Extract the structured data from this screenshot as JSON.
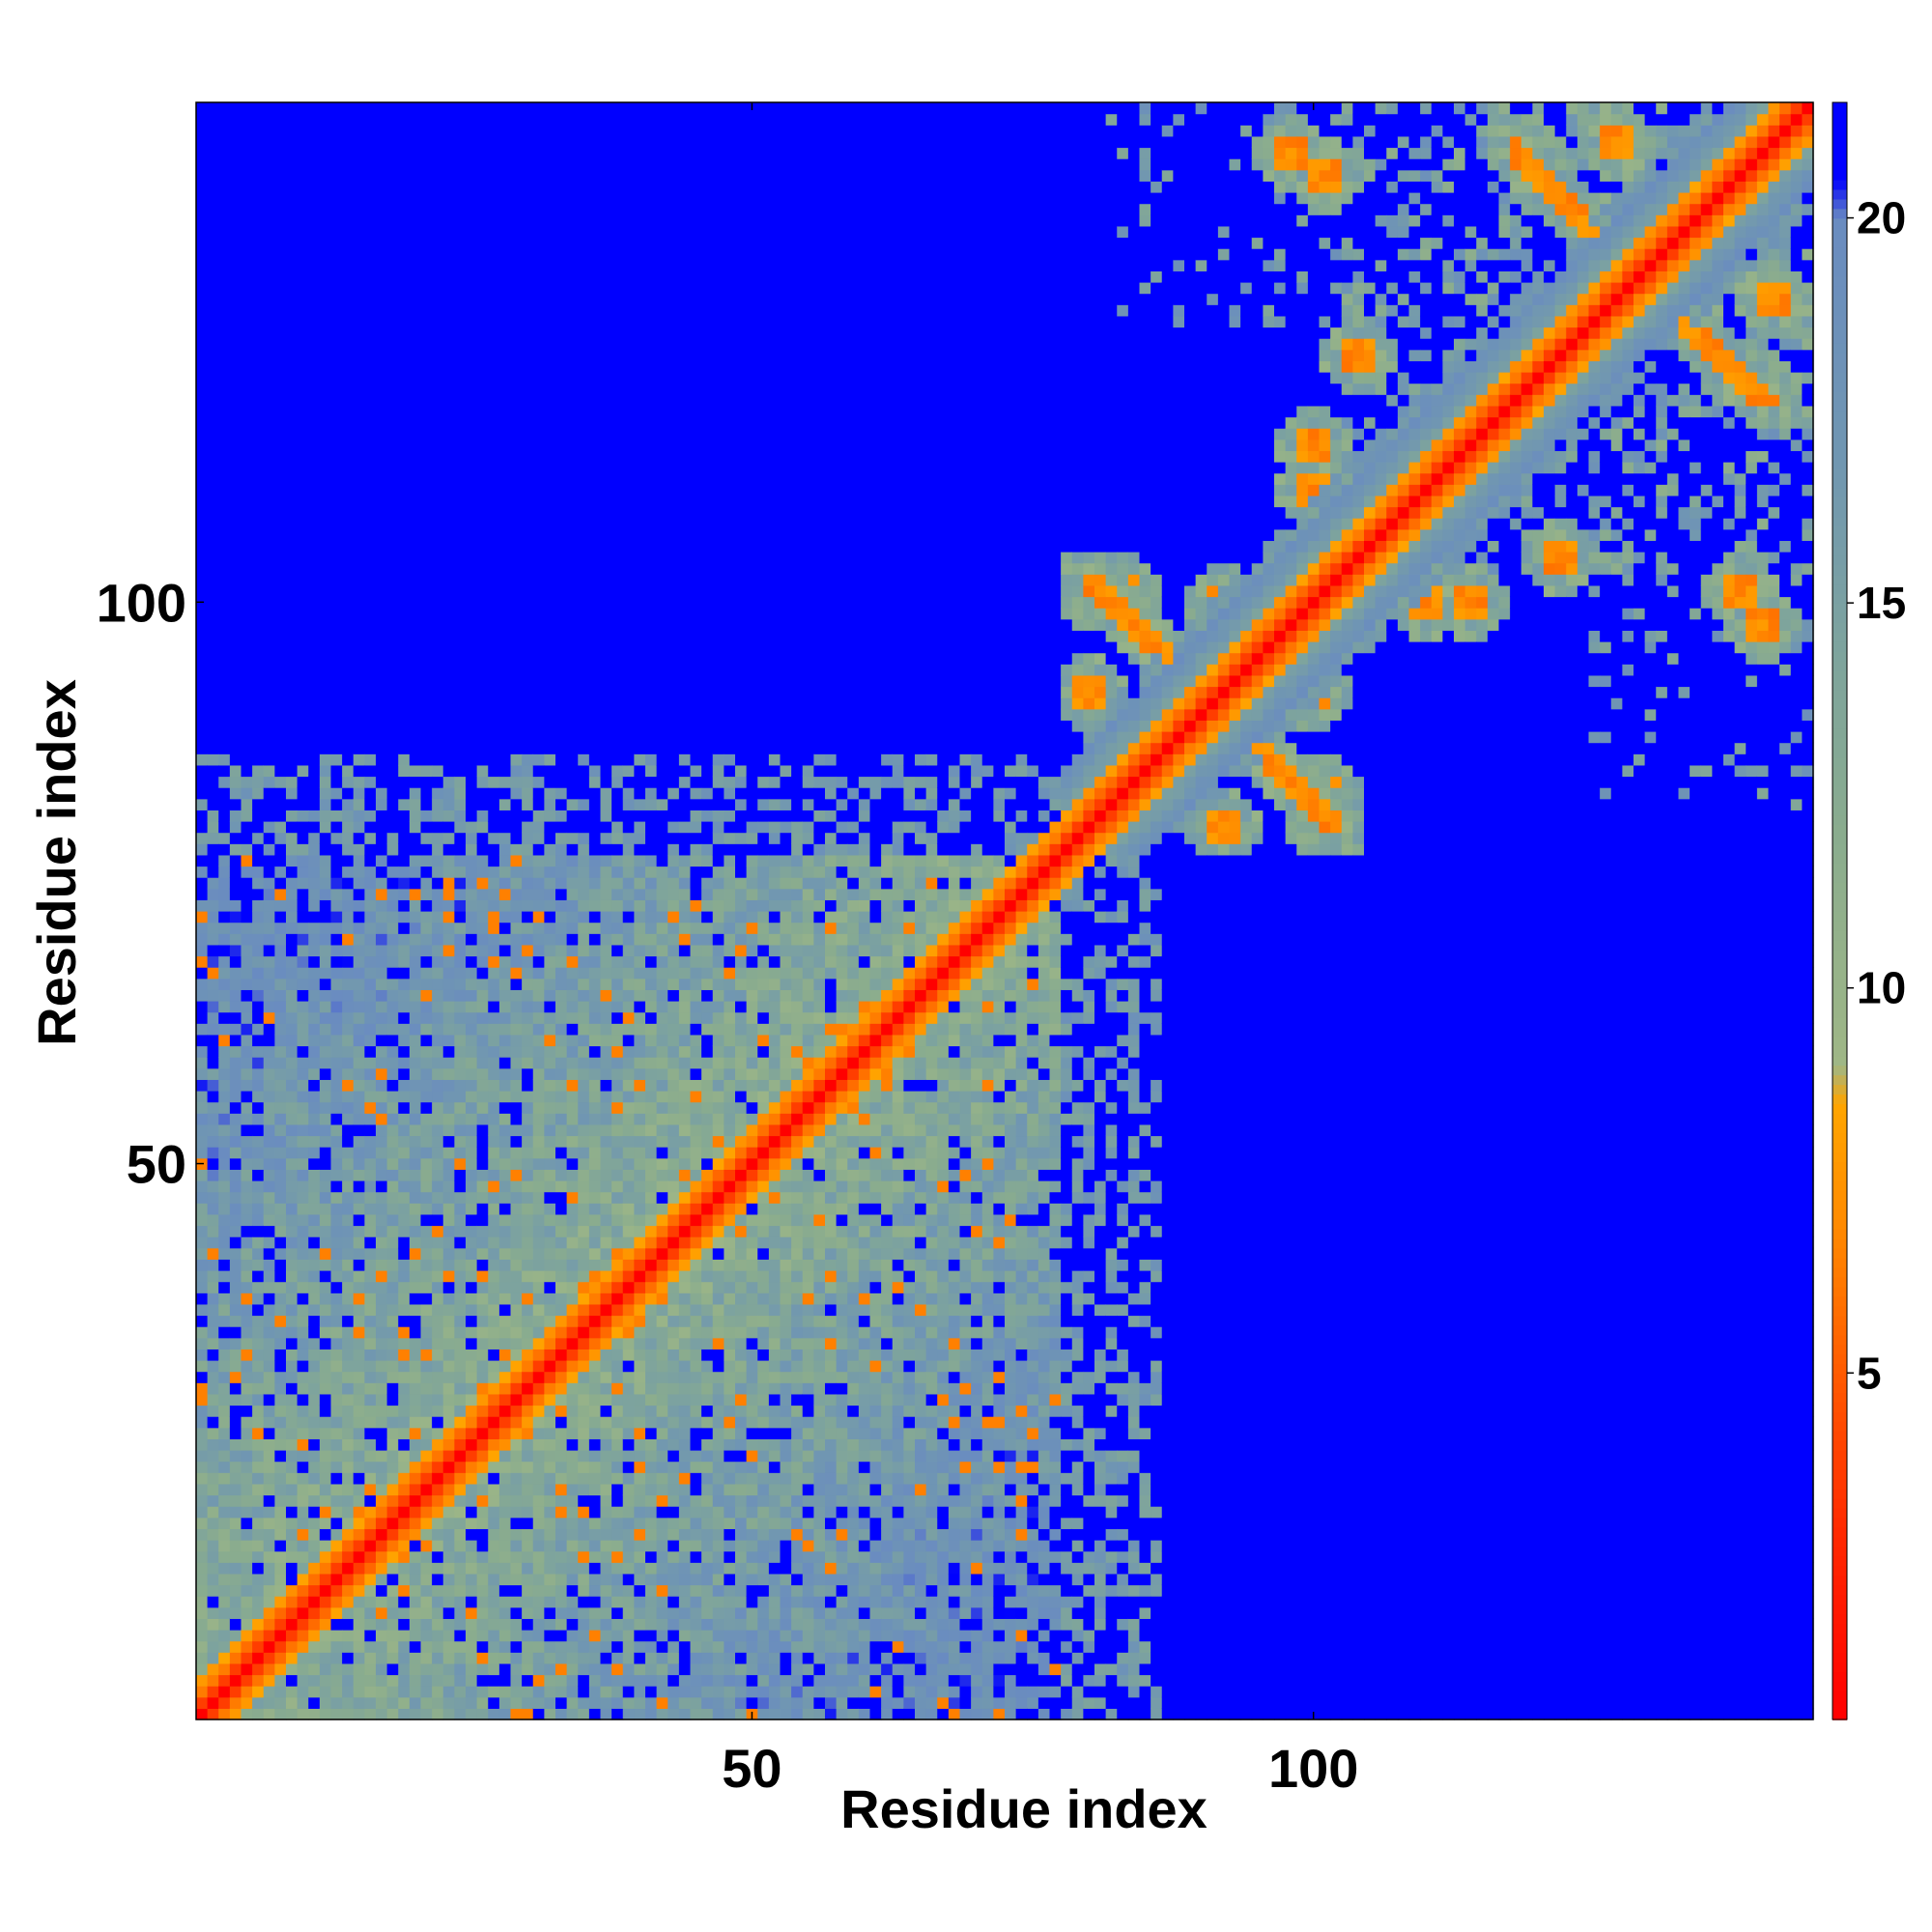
{
  "chart_data": {
    "type": "heatmap",
    "title": "",
    "xlabel": "Residue index",
    "ylabel": "Residue index",
    "n_residues": 144,
    "xlim": [
      0.5,
      144.5
    ],
    "ylim": [
      0.5,
      144.5
    ],
    "x_ticks": [
      50,
      100
    ],
    "x_tick_labels": [
      "50",
      "100"
    ],
    "y_ticks": [
      50,
      100
    ],
    "y_tick_labels": [
      "50",
      "100"
    ],
    "grid": false,
    "colorbar": {
      "position": "right",
      "range": [
        0.5,
        21.5
      ],
      "ticks": [
        5,
        10,
        15,
        20
      ],
      "tick_labels": [
        "5",
        "10",
        "15",
        "20"
      ],
      "stops": [
        {
          "value": 0.5,
          "color": "#ff0000"
        },
        {
          "value": 3.0,
          "color": "#ff2a00"
        },
        {
          "value": 5.0,
          "color": "#ff5a00"
        },
        {
          "value": 7.0,
          "color": "#ff8c00"
        },
        {
          "value": 8.5,
          "color": "#ffa500"
        },
        {
          "value": 9.0,
          "color": "#9fb786"
        },
        {
          "value": 12.0,
          "color": "#8aac8e"
        },
        {
          "value": 14.5,
          "color": "#7da39e"
        },
        {
          "value": 17.0,
          "color": "#7096b2"
        },
        {
          "value": 20.0,
          "color": "#6a8cc0"
        },
        {
          "value": 20.5,
          "color": "#0000ff"
        },
        {
          "value": 21.5,
          "color": "#0000ff"
        }
      ]
    },
    "cap_value": 21,
    "values_note_matrix": "approximate pairwise distance map; diagonal minimum, dense N-terminal block (residues 1–77), C-terminal cross-shaped contacts around residue 90 and 118–144",
    "blocks": [
      {
        "from": 1,
        "to": 77
      },
      {
        "from": 78,
        "to": 144
      }
    ],
    "hotspots": [
      {
        "i": 92,
        "j": 100,
        "value": 6
      },
      {
        "i": 83,
        "j": 101,
        "value": 6
      },
      {
        "i": 92,
        "j": 80,
        "value": 6
      },
      {
        "i": 101,
        "j": 80,
        "value": 6
      },
      {
        "i": 120,
        "j": 139,
        "value": 6
      },
      {
        "i": 127,
        "j": 141,
        "value": 6
      },
      {
        "i": 135,
        "j": 130,
        "value": 6
      },
      {
        "i": 140,
        "j": 135,
        "value": 6
      },
      {
        "i": 98,
        "j": 140,
        "value": 6
      },
      {
        "i": 100,
        "j": 114,
        "value": 6
      },
      {
        "i": 110,
        "j": 100,
        "value": 6
      },
      {
        "i": 122,
        "j": 104,
        "value": 6
      },
      {
        "i": 138,
        "j": 101,
        "value": 6
      }
    ]
  }
}
